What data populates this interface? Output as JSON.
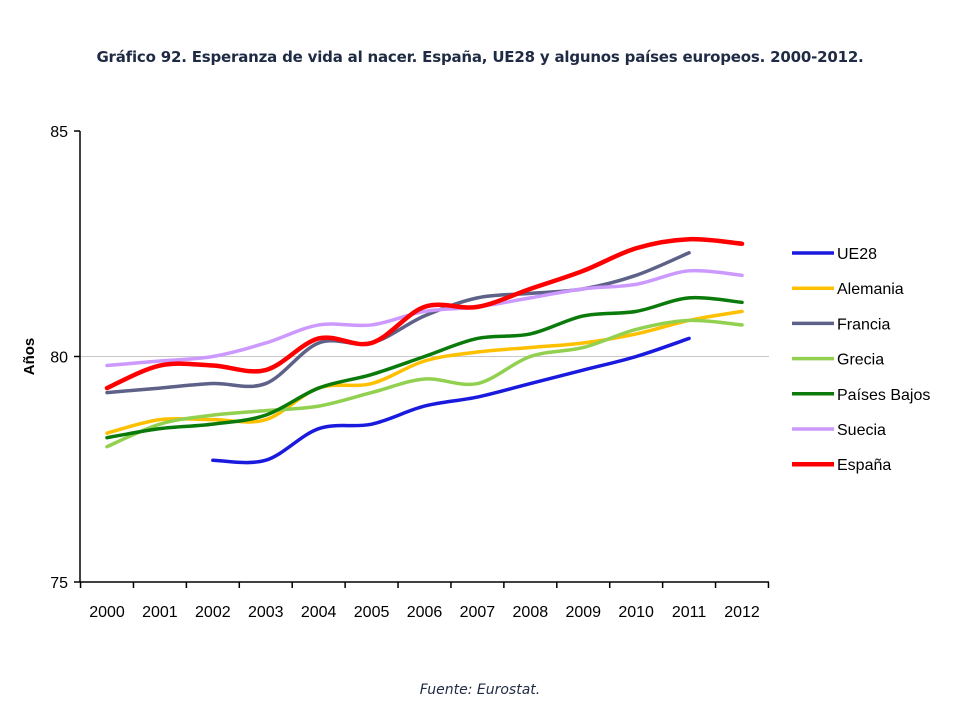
{
  "title": "Gráfico 92. Esperanza de vida al nacer. España, UE28 y algunos países europeos. 2000-2012.",
  "source": "Fuente: Eurostat.",
  "chart_data": {
    "type": "line",
    "ylabel": "Años",
    "xlabel": "",
    "ylim": [
      75,
      85
    ],
    "y_ticks": [
      "75",
      "80",
      "85"
    ],
    "x": [
      "2000",
      "2001",
      "2002",
      "2003",
      "2004",
      "2005",
      "2006",
      "2007",
      "2008",
      "2009",
      "2010",
      "2011",
      "2012"
    ],
    "grid": "horizontal gridline at 80",
    "legend_position": "right",
    "series": [
      {
        "name": "UE28",
        "color": "#1a1adf",
        "values": [
          null,
          null,
          77.7,
          77.7,
          78.4,
          78.5,
          78.9,
          79.1,
          79.4,
          79.7,
          80.0,
          80.4,
          null
        ]
      },
      {
        "name": "Alemania",
        "color": "#ffc000",
        "values": [
          78.3,
          78.6,
          78.6,
          78.6,
          79.3,
          79.4,
          79.9,
          80.1,
          80.2,
          80.3,
          80.5,
          80.8,
          81.0
        ]
      },
      {
        "name": "Francia",
        "color": "#5e6188",
        "values": [
          79.2,
          79.3,
          79.4,
          79.4,
          80.3,
          80.3,
          80.9,
          81.3,
          81.4,
          81.5,
          81.8,
          82.3,
          null
        ]
      },
      {
        "name": "Grecia",
        "color": "#92d050",
        "values": [
          78.0,
          78.5,
          78.7,
          78.8,
          78.9,
          79.2,
          79.5,
          79.4,
          80.0,
          80.2,
          80.6,
          80.8,
          80.7
        ]
      },
      {
        "name": "Países Bajos",
        "color": "#0a7a0a",
        "values": [
          78.2,
          78.4,
          78.5,
          78.7,
          79.3,
          79.6,
          80.0,
          80.4,
          80.5,
          80.9,
          81.0,
          81.3,
          81.2
        ]
      },
      {
        "name": "Suecia",
        "color": "#cc99ff",
        "values": [
          79.8,
          79.9,
          80.0,
          80.3,
          80.7,
          80.7,
          81.0,
          81.1,
          81.3,
          81.5,
          81.6,
          81.9,
          81.8
        ]
      },
      {
        "name": "España",
        "color": "#ff0000",
        "values": [
          79.3,
          79.8,
          79.8,
          79.7,
          80.4,
          80.3,
          81.1,
          81.1,
          81.5,
          81.9,
          82.4,
          82.6,
          82.5
        ]
      }
    ]
  }
}
